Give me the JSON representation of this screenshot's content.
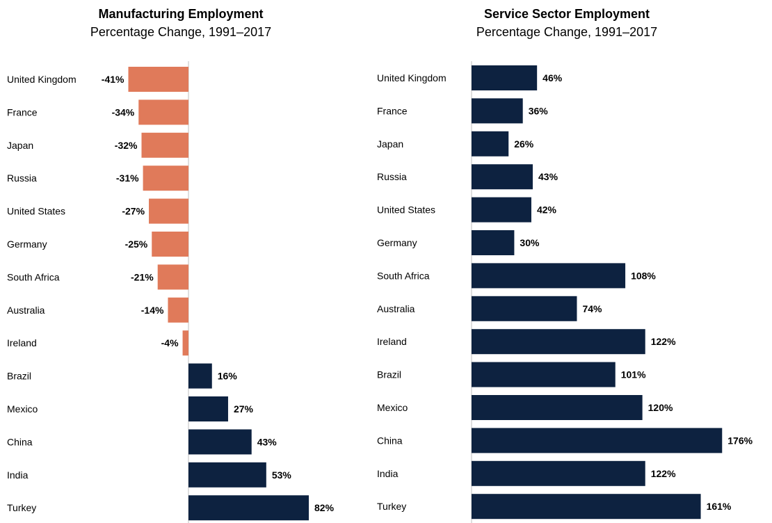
{
  "chart_data": [
    {
      "type": "bar",
      "orientation": "horizontal",
      "title": "Manufacturing Employment",
      "subtitle": "Percentage Change, 1991–2017",
      "categories": [
        "United Kingdom",
        "France",
        "Japan",
        "Russia",
        "United States",
        "Germany",
        "South Africa",
        "Australia",
        "Ireland",
        "Brazil",
        "Mexico",
        "China",
        "India",
        "Turkey"
      ],
      "values": [
        -41,
        -34,
        -32,
        -31,
        -27,
        -25,
        -21,
        -14,
        -4,
        16,
        27,
        43,
        53,
        82
      ],
      "labels": [
        "-41%",
        "-34%",
        "-32%",
        "-31%",
        "-27%",
        "-25%",
        "-21%",
        "-14%",
        "-4%",
        "16%",
        "27%",
        "43%",
        "53%",
        "82%"
      ],
      "xlim": [
        -41,
        82
      ],
      "grid": false,
      "colors": {
        "negative": "#E07A5A",
        "positive": "#0D2240",
        "axis": "#bfbfbf"
      }
    },
    {
      "type": "bar",
      "orientation": "horizontal",
      "title": "Service Sector Employment",
      "subtitle": "Percentage Change, 1991–2017",
      "categories": [
        "United Kingdom",
        "France",
        "Japan",
        "Russia",
        "United States",
        "Germany",
        "South Africa",
        "Australia",
        "Ireland",
        "Brazil",
        "Mexico",
        "China",
        "India",
        "Turkey"
      ],
      "values": [
        46,
        36,
        26,
        43,
        42,
        30,
        108,
        74,
        122,
        101,
        120,
        176,
        122,
        161
      ],
      "labels": [
        "46%",
        "36%",
        "26%",
        "43%",
        "42%",
        "30%",
        "108%",
        "74%",
        "122%",
        "101%",
        "120%",
        "176%",
        "122%",
        "161%"
      ],
      "xlim": [
        0,
        176
      ],
      "grid": false,
      "colors": {
        "negative": "#E07A5A",
        "positive": "#0D2240",
        "axis": "#bfbfbf"
      }
    }
  ]
}
